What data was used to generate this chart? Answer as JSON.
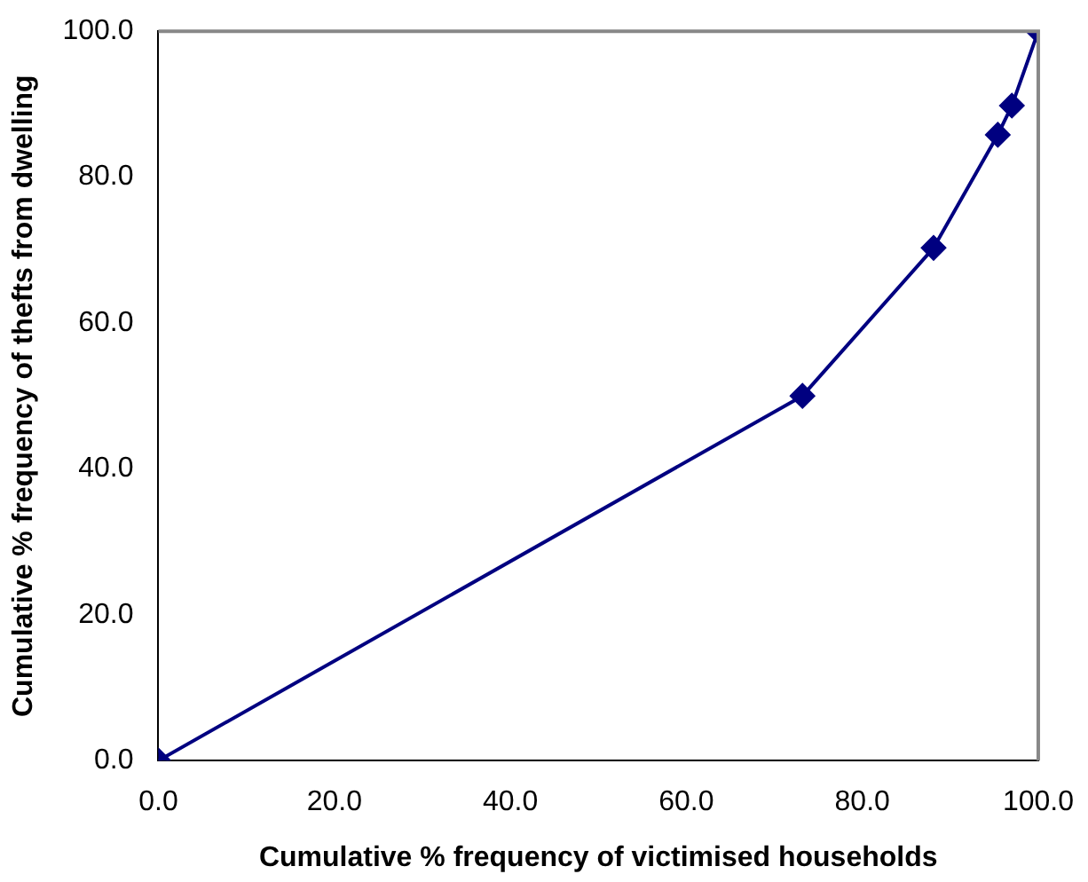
{
  "chart_data": {
    "type": "line",
    "xlabel": "Cumulative % frequency of victimised households",
    "ylabel": "Cumulative % frequency of thefts from dwelling",
    "x": [
      0,
      73.2,
      88.1,
      95.4,
      97.0,
      100
    ],
    "series": [
      {
        "color": "#000080",
        "values": [
          0,
          50.0,
          70.3,
          85.8,
          89.8,
          100
        ]
      }
    ],
    "xlim": [
      0,
      100
    ],
    "xticks": [
      {
        "value": 0,
        "label": "0.0"
      },
      {
        "value": 20,
        "label": "20.0"
      },
      {
        "value": 40,
        "label": "40.0"
      },
      {
        "value": 60,
        "label": "60.0"
      },
      {
        "value": 80,
        "label": "80.0"
      },
      {
        "value": 100,
        "label": "100.0"
      }
    ],
    "ylim": [
      0,
      100
    ],
    "yticks": [
      {
        "value": 0,
        "label": "0.0"
      },
      {
        "value": 20,
        "label": "20.0"
      },
      {
        "value": 40,
        "label": "40.0"
      },
      {
        "value": 60,
        "label": "60.0"
      },
      {
        "value": 80,
        "label": "80.0"
      },
      {
        "value": 100,
        "label": "100.0"
      }
    ],
    "grid": false,
    "legend": false,
    "marker": "diamond",
    "line_style": "solid"
  }
}
